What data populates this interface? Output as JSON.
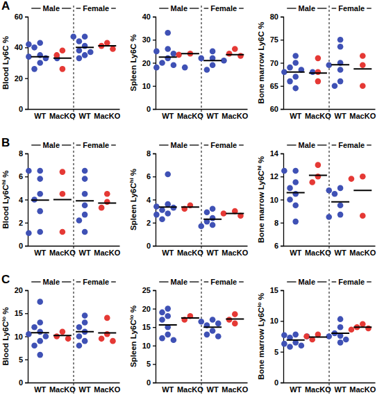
{
  "chart_data": [
    {
      "type": "scatter",
      "panel_label": "A",
      "ylabel": "Blood Ly6C %",
      "groups": [
        "Male",
        "Female"
      ],
      "categories": [
        "WT",
        "MacKO",
        "WT",
        "MacKO"
      ],
      "colors": [
        "#3f51b5",
        "#e53935",
        "#3f51b5",
        "#e53935"
      ],
      "ylim": [
        0,
        60
      ],
      "yticks": [
        0,
        20,
        40,
        60
      ],
      "points": [
        [
          43,
          42,
          40,
          35,
          34,
          33,
          33,
          30,
          26
        ],
        [
          38,
          35,
          26
        ],
        [
          47,
          47,
          44,
          41,
          38,
          37,
          35,
          33
        ],
        [
          43,
          41,
          39
        ]
      ],
      "means": [
        34,
        33,
        40,
        41
      ]
    },
    {
      "type": "scatter",
      "ylabel": "Spleen Ly6C %",
      "groups": [
        "Male",
        "Female"
      ],
      "categories": [
        "WT",
        "MacKO",
        "WT",
        "MacKO"
      ],
      "colors": [
        "#3f51b5",
        "#e53935",
        "#3f51b5",
        "#e53935"
      ],
      "ylim": [
        0,
        40
      ],
      "yticks": [
        0,
        10,
        20,
        30,
        40
      ],
      "points": [
        [
          33,
          26,
          25,
          24,
          22,
          20,
          19,
          18,
          18
        ],
        [
          24,
          23.5
        ],
        [
          25,
          22,
          22,
          21,
          19,
          17
        ],
        [
          26,
          24,
          23
        ]
      ],
      "means": [
        22.5,
        24,
        21,
        23.5
      ]
    },
    {
      "type": "scatter",
      "ylabel": "Bone marrow Ly6C %",
      "groups": [
        "Male",
        "Female"
      ],
      "categories": [
        "WT",
        "MacKO",
        "WT",
        "MacKO"
      ],
      "colors": [
        "#3f51b5",
        "#e53935",
        "#3f51b5",
        "#e53935"
      ],
      "ylim": [
        60,
        80
      ],
      "yticks": [
        60,
        65,
        70,
        75,
        80
      ],
      "points": [
        [
          71.5,
          70,
          69,
          68.5,
          68,
          68,
          67,
          66,
          64.5
        ],
        [
          71,
          68,
          66
        ],
        [
          75,
          73.5,
          70,
          69.5,
          68.5,
          66,
          65
        ],
        [
          71.5,
          69.5,
          65
        ]
      ],
      "means": [
        68,
        67.8,
        69.6,
        68.7
      ]
    },
    {
      "type": "scatter",
      "panel_label": "B",
      "ylabel": {
        "text": "Blood Ly6C",
        "sup": "hi",
        "after": " %"
      },
      "groups": [
        "Male",
        "Female"
      ],
      "categories": [
        "WT",
        "MacKO",
        "WT",
        "MacKO"
      ],
      "colors": [
        "#3f51b5",
        "#e53935",
        "#3f51b5",
        "#e53935"
      ],
      "ylim": [
        0,
        8
      ],
      "yticks": [
        0,
        2,
        4,
        6,
        8
      ],
      "points": [
        [
          6.5,
          6.5,
          5.8,
          4.5,
          4,
          3,
          1.2,
          1.1
        ],
        [
          6.4,
          4.5,
          1.2
        ],
        [
          6.5,
          5.8,
          4.5,
          3.5,
          2.7,
          2.2,
          1.2
        ],
        [
          4.5,
          3.8,
          3.3
        ]
      ],
      "means": [
        3.95,
        4,
        3.9,
        3.7
      ]
    },
    {
      "type": "scatter",
      "ylabel": {
        "text": "Spleen Ly6C",
        "sup": "hi",
        "after": " %"
      },
      "groups": [
        "Male",
        "Female"
      ],
      "categories": [
        "WT",
        "MacKO",
        "WT",
        "MacKO"
      ],
      "colors": [
        "#3f51b5",
        "#e53935",
        "#3f51b5",
        "#e53935"
      ],
      "ylim": [
        0,
        8
      ],
      "yticks": [
        0,
        2,
        4,
        6,
        8
      ],
      "points": [
        [
          6.2,
          3.6,
          3.4,
          3.3,
          3.1,
          2.8,
          2.7,
          2.3
        ],
        [
          3.5,
          3.2
        ],
        [
          3.2,
          2.9,
          2.4,
          2.1,
          1.8,
          1.7
        ],
        [
          3.0,
          2.8,
          2.6
        ]
      ],
      "means": [
        3.35,
        3.35,
        2.3,
        2.8
      ]
    },
    {
      "type": "scatter",
      "ylabel": {
        "text": "Bone marrow Ly6C",
        "sup": "hi",
        "after": " %"
      },
      "groups": [
        "Male",
        "Female"
      ],
      "categories": [
        "WT",
        "MacKO",
        "WT",
        "MacKO"
      ],
      "colors": [
        "#3f51b5",
        "#e53935",
        "#3f51b5",
        "#e53935"
      ],
      "ylim": [
        6,
        14
      ],
      "yticks": [
        6,
        8,
        10,
        12,
        14
      ],
      "points": [
        [
          12.5,
          12.5,
          11.5,
          11,
          10.5,
          10,
          9.5,
          8.1
        ],
        [
          13,
          12,
          11.5
        ],
        [
          11,
          10.8,
          10.5,
          9.5,
          8.7,
          8.5
        ],
        [
          12,
          11.8,
          8.6
        ]
      ],
      "means": [
        10.6,
        12.1,
        9.8,
        10.8
      ]
    },
    {
      "type": "scatter",
      "panel_label": "C",
      "ylabel": {
        "text": "Blood Ly6C",
        "sup": "lo",
        "after": " %"
      },
      "groups": [
        "Male",
        "Female"
      ],
      "categories": [
        "WT",
        "MacKO",
        "WT",
        "MacKO"
      ],
      "colors": [
        "#3f51b5",
        "#e53935",
        "#3f51b5",
        "#e53935"
      ],
      "ylim": [
        0,
        20
      ],
      "yticks": [
        0,
        5,
        10,
        15,
        20
      ],
      "points": [
        [
          17.5,
          13,
          12,
          11,
          10.5,
          10,
          9,
          8,
          6
        ],
        [
          11,
          10,
          9.5
        ],
        [
          14.5,
          13,
          12,
          11,
          10,
          9,
          8
        ],
        [
          14,
          10.5,
          9.5,
          9
        ]
      ],
      "means": [
        10.8,
        10.2,
        11,
        10.75
      ]
    },
    {
      "type": "scatter",
      "ylabel": {
        "text": "Spleen Ly6C",
        "sup": "lo",
        "after": " %"
      },
      "groups": [
        "Male",
        "Female"
      ],
      "categories": [
        "WT",
        "MacKO",
        "WT",
        "MacKO"
      ],
      "colors": [
        "#3f51b5",
        "#e53935",
        "#3f51b5",
        "#e53935"
      ],
      "ylim": [
        0,
        25
      ],
      "yticks": [
        0,
        5,
        10,
        15,
        20,
        25
      ],
      "points": [
        [
          20,
          19,
          18,
          17,
          15,
          13,
          12,
          11.5
        ],
        [
          18,
          17
        ],
        [
          17,
          16.5,
          16,
          15.5,
          14,
          13,
          12.5
        ],
        [
          18.5,
          17,
          16
        ]
      ],
      "means": [
        15.6,
        17.5,
        15,
        17.2
      ]
    },
    {
      "type": "scatter",
      "ylabel": {
        "text": "Bone marrow Ly6C",
        "sup": "lo",
        "after": " %"
      },
      "groups": [
        "Male",
        "Female"
      ],
      "categories": [
        "WT",
        "MacKO",
        "WT",
        "MacKO"
      ],
      "colors": [
        "#3f51b5",
        "#e53935",
        "#3f51b5",
        "#e53935"
      ],
      "ylim": [
        0,
        15
      ],
      "yticks": [
        0,
        5,
        10,
        15
      ],
      "points": [
        [
          7.8,
          7.7,
          7.5,
          7.3,
          6.5,
          6.3,
          6,
          5.8
        ],
        [
          7.8,
          7.5,
          7
        ],
        [
          10.3,
          9,
          8,
          7.6,
          7.5,
          7,
          6.5
        ],
        [
          9.5,
          9,
          8.8,
          8.6
        ]
      ],
      "means": [
        6.9,
        7.4,
        8,
        9
      ]
    }
  ]
}
